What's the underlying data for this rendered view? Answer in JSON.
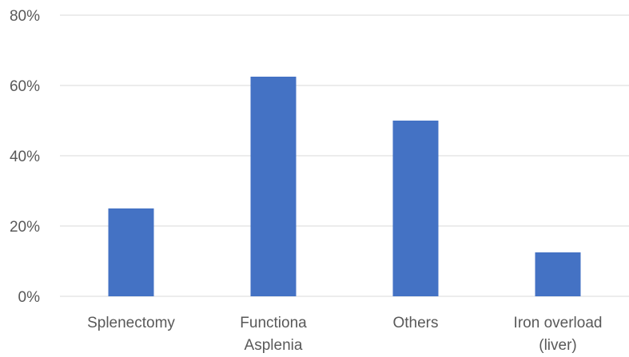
{
  "chart_data": {
    "type": "bar",
    "categories": [
      [
        "Splenectomy"
      ],
      [
        "Functiona",
        "Asplenia"
      ],
      [
        "Others"
      ],
      [
        "Iron overload",
        "(liver)"
      ]
    ],
    "values": [
      25,
      62.5,
      50,
      12.5
    ],
    "y_ticks": [
      "0%",
      "20%",
      "40%",
      "60%",
      "80%"
    ],
    "y_tick_values": [
      0,
      20,
      40,
      60,
      80
    ],
    "ylim": [
      0,
      80
    ],
    "y_format": "percent",
    "grid": true,
    "legend": "none",
    "bar_color": "#4472c4"
  }
}
